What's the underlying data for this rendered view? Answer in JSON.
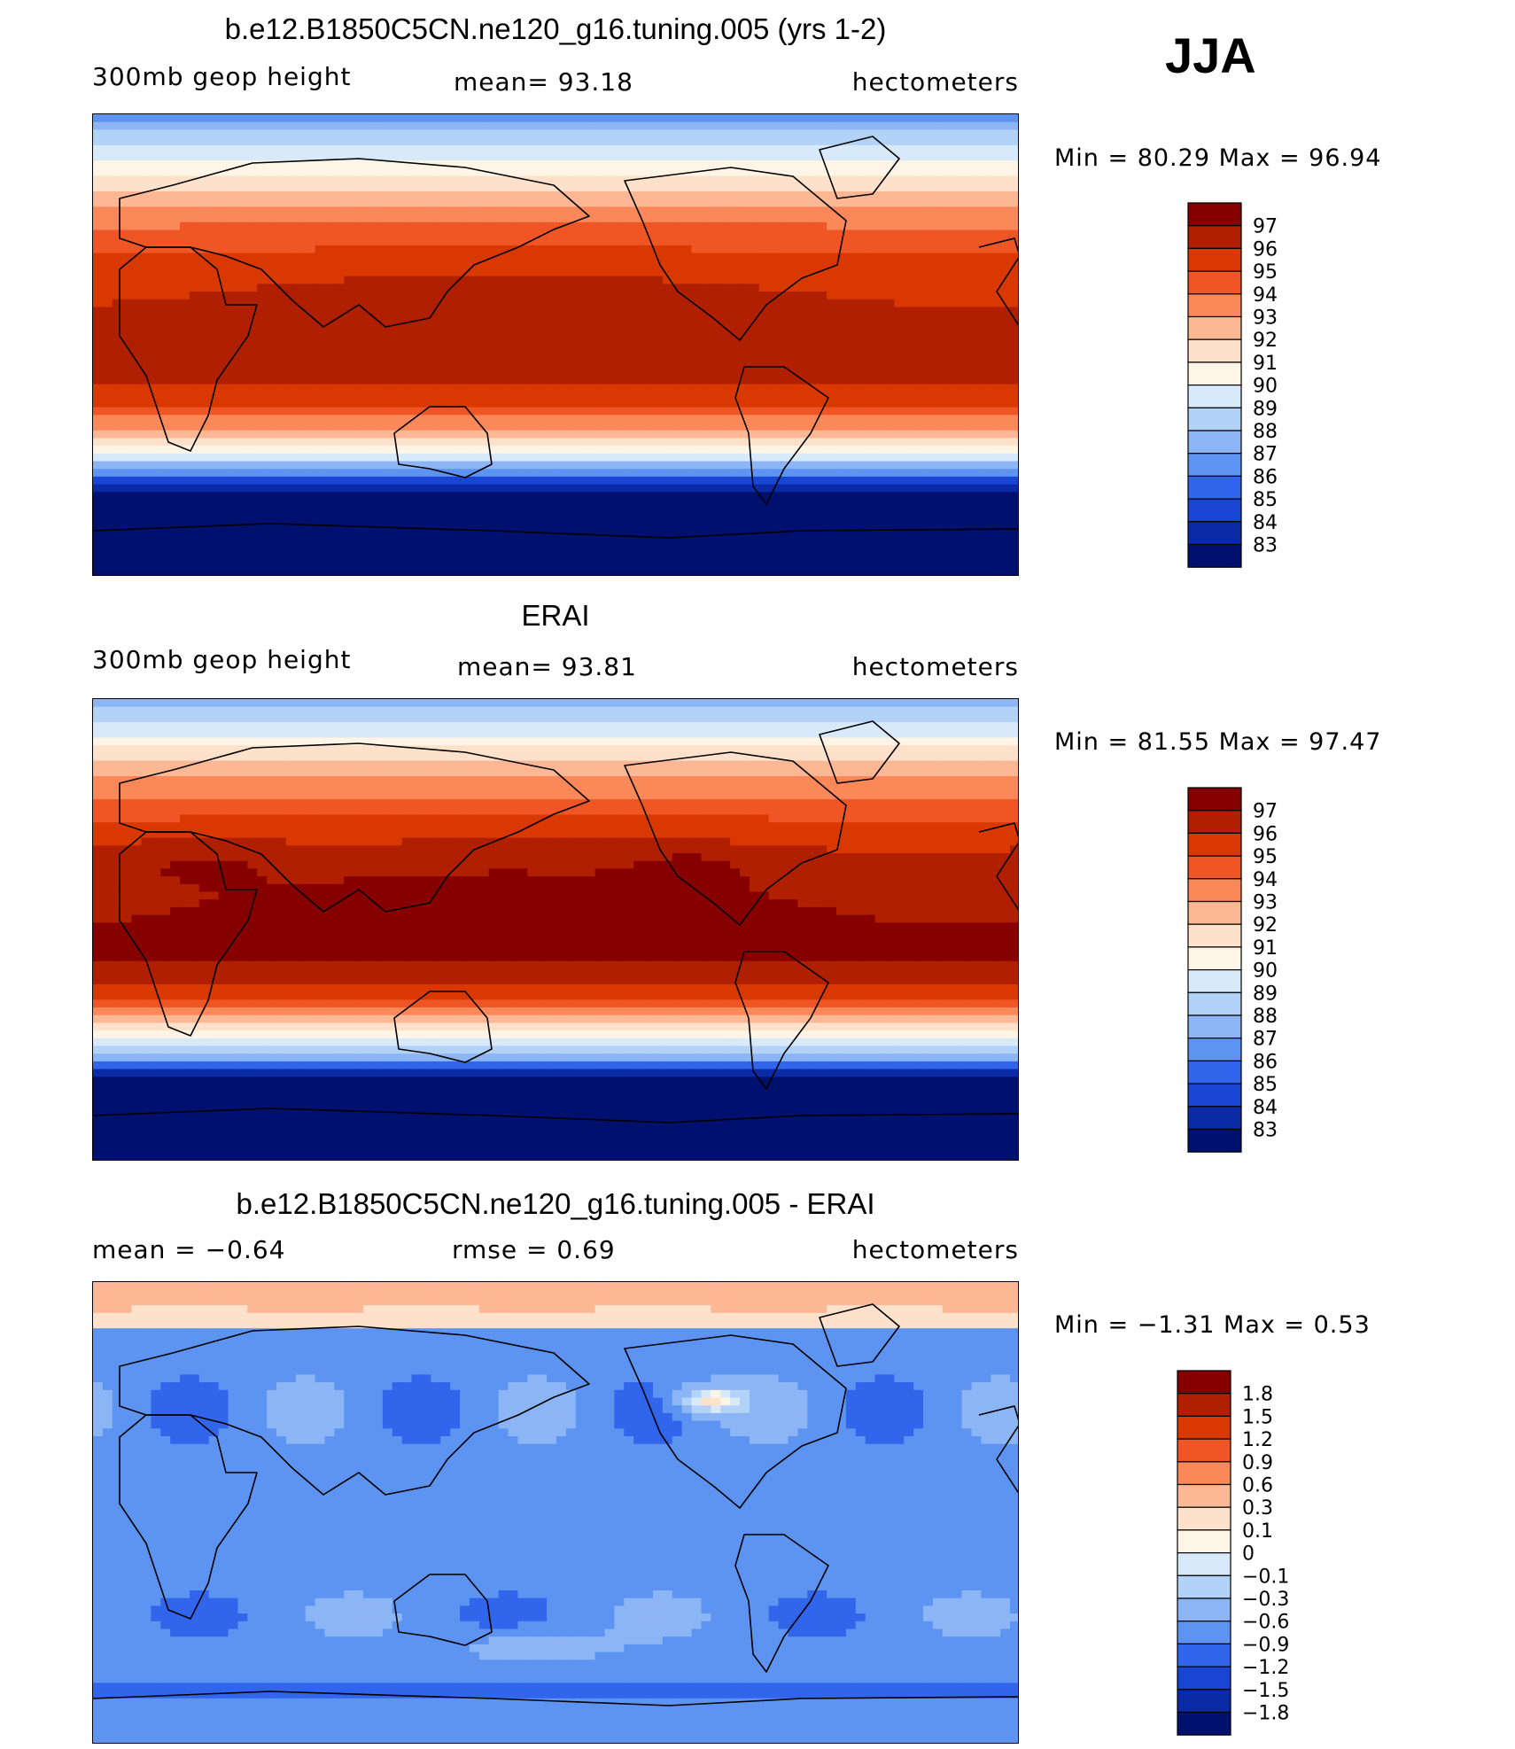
{
  "season": "JJA",
  "panels": [
    {
      "id": "model",
      "title": "b.e12.B1850C5CN.ne120_g16.tuning.005 (yrs 1-2)",
      "left_label": "300mb  geop  height",
      "center_label": "mean=   93.18",
      "right_label": "hectometers",
      "minmax": "Min  =    80.29  Max  =    96.94",
      "colorbar_labels": [
        "97",
        "96",
        "95",
        "94",
        "93",
        "92",
        "91",
        "90",
        "89",
        "88",
        "87",
        "86",
        "85",
        "84",
        "83"
      ],
      "colorbar_colors": [
        "#860000",
        "#b01f00",
        "#d93800",
        "#f05525",
        "#fa8858",
        "#fcb795",
        "#fde1cb",
        "#fff5e6",
        "#d8e9fa",
        "#b3d2f8",
        "#8cb5f6",
        "#5d93f1",
        "#3165eb",
        "#1945d4",
        "#0a2aa6",
        "#00106f"
      ]
    },
    {
      "id": "obs",
      "title": "ERAI",
      "left_label": "300mb  geop  height",
      "center_label": "mean=   93.81",
      "right_label": "hectometers",
      "minmax": "Min  =    81.55  Max  =    97.47",
      "colorbar_labels": [
        "97",
        "96",
        "95",
        "94",
        "93",
        "92",
        "91",
        "90",
        "89",
        "88",
        "87",
        "86",
        "85",
        "84",
        "83"
      ],
      "colorbar_colors": [
        "#860000",
        "#b01f00",
        "#d93800",
        "#f05525",
        "#fa8858",
        "#fcb795",
        "#fde1cb",
        "#fff5e6",
        "#d8e9fa",
        "#b3d2f8",
        "#8cb5f6",
        "#5d93f1",
        "#3165eb",
        "#1945d4",
        "#0a2aa6",
        "#00106f"
      ]
    },
    {
      "id": "diff",
      "title": "b.e12.B1850C5CN.ne120_g16.tuning.005 - ERAI",
      "left_label": "mean  =    −0.64",
      "center_label": "rmse  =     0.69",
      "right_label": "hectometers",
      "minmax": "Min  =    −1.31  Max  =      0.53",
      "colorbar_labels": [
        "1.8",
        "1.5",
        "1.2",
        "0.9",
        "0.6",
        "0.3",
        "0.1",
        "0",
        "−0.1",
        "−0.3",
        "−0.6",
        "−0.9",
        "−1.2",
        "−1.5",
        "−1.8"
      ],
      "colorbar_colors": [
        "#860000",
        "#b01f00",
        "#d93800",
        "#f05525",
        "#fa8858",
        "#fcb795",
        "#fde1cb",
        "#fff5e6",
        "#d8e9fa",
        "#b3d2f8",
        "#8cb5f6",
        "#5d93f1",
        "#3165eb",
        "#1945d4",
        "#0a2aa6",
        "#00106f"
      ]
    }
  ]
}
